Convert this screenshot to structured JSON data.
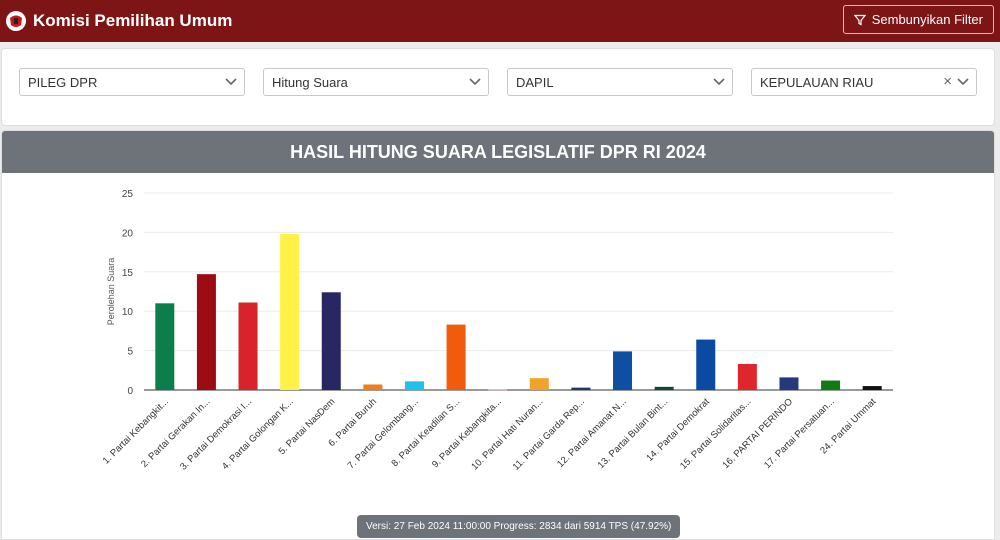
{
  "header": {
    "title": "Komisi Pemilihan Umum",
    "filter_button": "Sembunyikan Filter"
  },
  "filters": {
    "election": "PILEG DPR",
    "mode": "Hitung Suara",
    "level": "DAPIL",
    "region": "KEPULAUAN RIAU",
    "clear_symbol": "×"
  },
  "chart_title": "HASIL HITUNG SUARA LEGISLATIF DPR RI 2024",
  "chart_data": {
    "type": "bar",
    "ylabel": "Perolehan Suara",
    "ylim": [
      0,
      25
    ],
    "yticks": [
      0,
      5,
      10,
      15,
      20,
      25
    ],
    "grid": true,
    "categories": [
      "1. Partai Kebangkit...",
      "2. Partai Gerakan In...",
      "3. Partai Demokrasi I...",
      "4. Partai Golongan K...",
      "5. Partai NasDem",
      "6. Partai Buruh",
      "7. Partai Gelombang...",
      "8. Partai Keadilan S...",
      "9. Partai Kebangkita...",
      "10. Partai Hati Nuran...",
      "11. Partai Garda Rep...",
      "12. Partai Amanat N...",
      "13. Partai Bulan Bint...",
      "14. Partai Demokrat",
      "15. Partai Solidaritas...",
      "16. PARTAI PERINDO",
      "17. Partai Persatuan...",
      "24. Partai Ummat"
    ],
    "values": [
      11.0,
      14.7,
      11.1,
      19.8,
      12.4,
      0.7,
      1.1,
      8.3,
      0.1,
      1.5,
      0.3,
      4.9,
      0.4,
      6.4,
      3.3,
      1.6,
      1.2,
      0.5
    ],
    "colors": [
      "#0a7e4b",
      "#9b0d12",
      "#d8232a",
      "#fff04a",
      "#272764",
      "#f07c1a",
      "#1fc1ef",
      "#f15b0c",
      "#f1a3a3",
      "#f0a22a",
      "#1c3b63",
      "#0e4fa3",
      "#0d4a2f",
      "#0b4aa2",
      "#e0262b",
      "#25377d",
      "#107a14",
      "#111111"
    ]
  },
  "footer": {
    "version_text": "Versi: 27 Feb 2024 11:00:00 Progress: 2834 dari 5914 TPS (47.92%)"
  }
}
